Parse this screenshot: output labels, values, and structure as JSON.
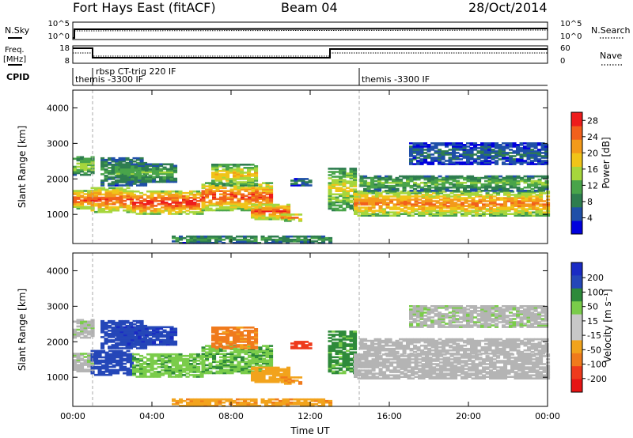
{
  "header": {
    "station": "Fort Hays East (fitACF)",
    "beam": "Beam 04",
    "date": "28/Oct/2014"
  },
  "aux_labels": {
    "nsky": "N.Sky",
    "nsearch": "N.Search",
    "nsky_hi": "10^5",
    "nsky_lo": "10^0",
    "nsearch_hi": "10^5",
    "nsearch_lo": "10^0",
    "freq_line1": "Freq.",
    "freq_line2": "[MHz]",
    "freq_hi": "18",
    "freq_lo": "8",
    "nave": "Nave",
    "nave_hi": "60",
    "nave_lo": "0",
    "cpid": "CPID"
  },
  "cpid_annotations": [
    "themis -3300 IF",
    "rbsp CT-trig 220 IF",
    "themis -3300 IF"
  ],
  "colors": {
    "power_scale": [
      "#0000dd",
      "#1f4fa8",
      "#2e7d4f",
      "#49a44a",
      "#a6d63c",
      "#f0c419",
      "#f39a1a",
      "#f2601c",
      "#ee1c1c"
    ],
    "velocity_scale": [
      "#1a2bc4",
      "#2547b8",
      "#2e8a3a",
      "#7acc4a",
      "#c8c8c8",
      "#c8c8c8",
      "#f2a31c",
      "#f07a1c",
      "#ee3a1c",
      "#e61414"
    ],
    "ground_scatter": "#b4b4b4"
  },
  "chart_data": {
    "type": "heatmap",
    "time_range_ut": [
      "00:00",
      "24:00"
    ],
    "slant_range_km": [
      180,
      4500
    ],
    "x_ticks": [
      "00:00",
      "04:00",
      "08:00",
      "12:00",
      "16:00",
      "20:00",
      "00:00"
    ],
    "xlabel": "Time UT",
    "y_ticks": [
      "1000",
      "2000",
      "3000",
      "4000"
    ],
    "panels": [
      {
        "name": "power",
        "ylabel": "Slant Range [km]",
        "colorbar_label": "Power [dB]",
        "colorbar_ticks": [
          "4",
          "8",
          "12",
          "16",
          "20",
          "24",
          "28"
        ],
        "scale": [
          0,
          30
        ]
      },
      {
        "name": "velocity",
        "ylabel": "Slant Range [km]",
        "colorbar_label": "Velocity [m s⁻¹]",
        "colorbar_ticks": [
          "200",
          "100",
          "50",
          "15",
          "-15",
          "-50",
          "-100",
          "-200"
        ],
        "scale": [
          -250,
          250
        ]
      }
    ],
    "echo_bands": [
      {
        "t0": 0.0,
        "t1": 0.9,
        "r0": 1150,
        "r1": 1650,
        "power": 25,
        "velocity": 5
      },
      {
        "t0": 0.0,
        "t1": 0.9,
        "r0": 2100,
        "r1": 2600,
        "power": 14,
        "velocity": 5
      },
      {
        "t0": 0.9,
        "t1": 3.0,
        "r0": 1050,
        "r1": 1750,
        "power": 24,
        "velocity": 180
      },
      {
        "t0": 1.4,
        "t1": 3.6,
        "r0": 1800,
        "r1": 2600,
        "power": 10,
        "velocity": 160
      },
      {
        "t0": 2.2,
        "t1": 5.2,
        "r0": 1900,
        "r1": 2400,
        "power": 12,
        "velocity": 190
      },
      {
        "t0": 3.0,
        "t1": 6.5,
        "r0": 1000,
        "r1": 1650,
        "power": 26,
        "velocity": 40
      },
      {
        "t0": 6.5,
        "t1": 10.0,
        "r0": 1100,
        "r1": 1900,
        "power": 24,
        "velocity": 45
      },
      {
        "t0": 7.0,
        "t1": 9.2,
        "r0": 1800,
        "r1": 2400,
        "power": 18,
        "velocity": -60
      },
      {
        "t0": 9.0,
        "t1": 10.8,
        "r0": 850,
        "r1": 1300,
        "power": 24,
        "velocity": -30
      },
      {
        "t0": 10.5,
        "t1": 11.5,
        "r0": 800,
        "r1": 1000,
        "power": 22,
        "velocity": -50
      },
      {
        "t0": 11.0,
        "t1": 12.0,
        "r0": 1800,
        "r1": 2000,
        "power": 8,
        "velocity": -120
      },
      {
        "t0": 12.9,
        "t1": 14.2,
        "r0": 1100,
        "r1": 2300,
        "power": 16,
        "velocity": 60
      },
      {
        "t0": 14.2,
        "t1": 24.0,
        "r0": 950,
        "r1": 1650,
        "power": 22,
        "velocity": 0
      },
      {
        "t0": 14.5,
        "t1": 24.0,
        "r0": 1650,
        "r1": 2100,
        "power": 12,
        "velocity": 0
      },
      {
        "t0": 17.0,
        "t1": 24.0,
        "r0": 2400,
        "r1": 3000,
        "power": 6,
        "velocity": 5
      },
      {
        "t0": 5.0,
        "t1": 13.0,
        "r0": 180,
        "r1": 400,
        "power": 10,
        "velocity": -40
      }
    ]
  }
}
